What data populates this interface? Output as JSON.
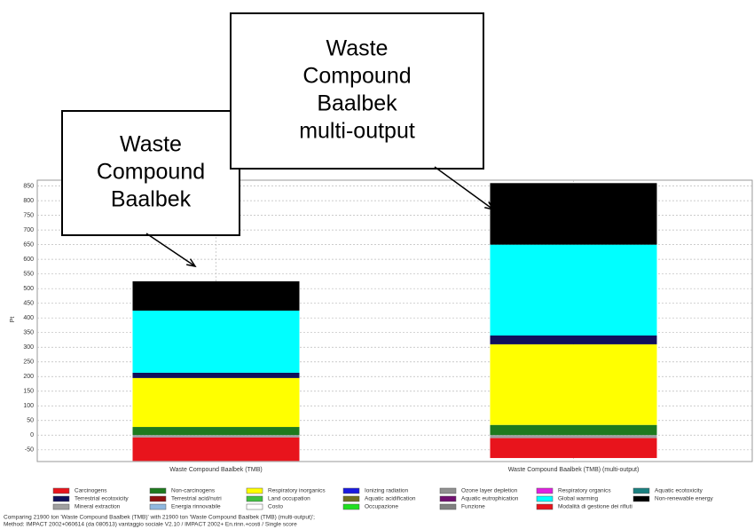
{
  "chart_data": {
    "type": "stacked_bar",
    "y_label": "Pt",
    "categories": [
      "Waste Compound Baalbek (TMB)",
      "Waste Compound Baalbek (TMB) (multi-output)"
    ],
    "ylim": [
      -90,
      870
    ],
    "yticks": [
      -50,
      0,
      50,
      100,
      150,
      200,
      250,
      300,
      350,
      400,
      450,
      500,
      550,
      600,
      650,
      700,
      750,
      800,
      850
    ],
    "grid": true,
    "series": [
      {
        "name": "Carcinogens",
        "color": "#e8141c",
        "values": [
          0,
          0
        ]
      },
      {
        "name": "Non-carcinogens",
        "color": "#1e7a1e",
        "values": [
          28,
          35
        ]
      },
      {
        "name": "Respiratory inorganics",
        "color": "#ffff00",
        "values": [
          167,
          275
        ]
      },
      {
        "name": "Ionizing radiation",
        "color": "#1a1ae0",
        "values": [
          0,
          0
        ]
      },
      {
        "name": "Ozone layer depletion",
        "color": "#909090",
        "values": [
          0,
          0
        ]
      },
      {
        "name": "Respiratory organics",
        "color": "#e020e0",
        "values": [
          0,
          0
        ]
      },
      {
        "name": "Aquatic ecotoxicity",
        "color": "#1a8080",
        "values": [
          0,
          0
        ]
      },
      {
        "name": "Terrestrial ecotoxicity",
        "color": "#10105a",
        "values": [
          18,
          30
        ]
      },
      {
        "name": "Terrestrial acid/nutri",
        "color": "#901010",
        "values": [
          0,
          0
        ]
      },
      {
        "name": "Land occupation",
        "color": "#40c040",
        "values": [
          0,
          0
        ]
      },
      {
        "name": "Aquatic acidification",
        "color": "#707020",
        "values": [
          0,
          0
        ]
      },
      {
        "name": "Aquatic eutrophication",
        "color": "#701070",
        "values": [
          0,
          0
        ]
      },
      {
        "name": "Global warming",
        "color": "#00ffff",
        "values": [
          212,
          310
        ]
      },
      {
        "name": "Non-renewable energy",
        "color": "#000000",
        "values": [
          100,
          210
        ]
      },
      {
        "name": "Mineral extraction",
        "color": "#a0a0a0",
        "values": [
          -8,
          -10
        ]
      },
      {
        "name": "Energia rinnovabile",
        "color": "#90b8e0",
        "values": [
          0,
          0
        ]
      },
      {
        "name": "Costo",
        "color": "#ffffff",
        "values": [
          0,
          0
        ]
      },
      {
        "name": "Occupazione",
        "color": "#20e020",
        "values": [
          0,
          0
        ]
      },
      {
        "name": "Funzione",
        "color": "#808080",
        "values": [
          0,
          0
        ]
      },
      {
        "name": "Modalità di gestione dei rifiuti",
        "color": "#e8141c",
        "values": [
          -80,
          -68
        ]
      }
    ],
    "annotations": [
      [
        "Waste",
        "Compound",
        "Baalbek"
      ],
      [
        "Waste",
        "Compound",
        "Baalbek",
        "multi-output"
      ]
    ],
    "footer": [
      "Comparing 21900 ton 'Waste Compound Baalbek (TMB)' with 21900 ton 'Waste Compound Baalbek (TMB) (multi-output)';",
      "Method: IMPACT 2002+060614 (da 080513) vantaggio sociale V2.10 / IMPACT 2002+ En.rinn.+costi / Single score"
    ]
  }
}
